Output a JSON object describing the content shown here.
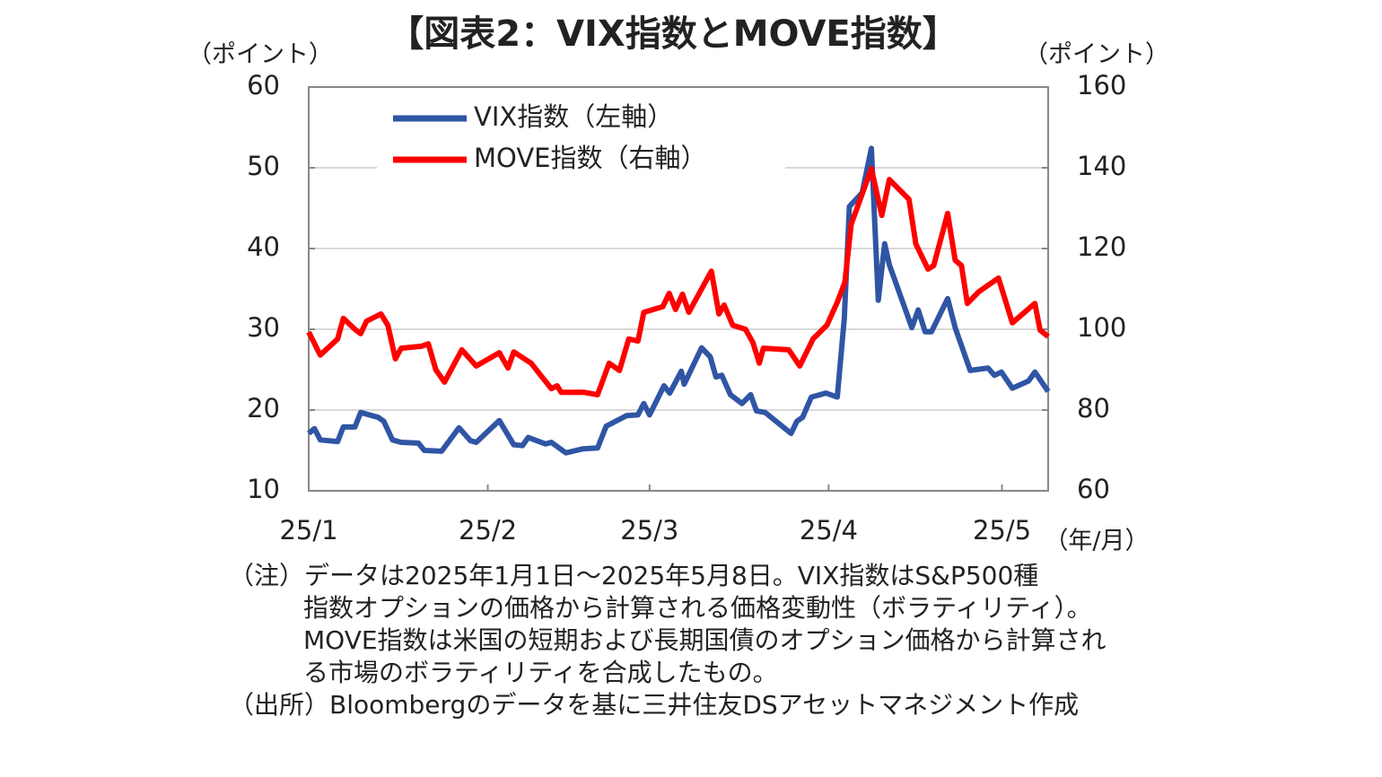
{
  "chart_data": {
    "type": "line",
    "title": "【図表2：VIX指数とMOVE指数】",
    "ylabel": "（ポイント）",
    "y2label": "（ポイント）",
    "xlabel": "（年/月）",
    "xlim": [
      0,
      128
    ],
    "xticks": [
      {
        "value": 0,
        "label": "25/1"
      },
      {
        "value": 31,
        "label": "25/2"
      },
      {
        "value": 59,
        "label": "25/3"
      },
      {
        "value": 90,
        "label": "25/4"
      },
      {
        "value": 120,
        "label": "25/5"
      }
    ],
    "ylim": [
      10,
      60
    ],
    "yticks": [
      10,
      20,
      30,
      40,
      50,
      60
    ],
    "y2lim": [
      60,
      160
    ],
    "y2ticks": [
      60,
      80,
      100,
      120,
      140,
      160
    ],
    "grid": true,
    "legend": "upper left",
    "series": [
      {
        "name": "VIX指数（左軸）",
        "color": "#2f55a4",
        "axis": "y",
        "x": [
          0,
          1,
          2,
          5,
          6,
          8,
          9,
          12,
          13,
          14.5,
          16,
          19,
          20,
          23,
          26,
          28,
          29,
          33,
          35.5,
          37,
          38,
          41,
          42,
          44.5,
          47.5,
          50,
          51.5,
          55,
          57,
          58,
          59,
          61.5,
          62.5,
          64.5,
          65,
          68,
          69.5,
          70.5,
          71.5,
          73,
          75,
          76.5,
          77.5,
          79,
          83.5,
          84.5,
          85.5,
          87,
          89.5,
          91.5,
          92.7,
          93.6,
          95.8,
          97.4,
          98.6,
          99.7,
          100.5,
          104.4,
          105.5,
          106.7,
          107.8,
          110.6,
          111.9,
          114.5,
          117.6,
          118.7,
          119.9,
          121.8,
          124.6,
          125.7,
          128
        ],
        "values": [
          17.1,
          17.7,
          16.3,
          16.1,
          17.9,
          17.9,
          19.7,
          19.1,
          18.6,
          16.3,
          16,
          15.9,
          15,
          14.9,
          17.8,
          16.2,
          16,
          18.7,
          15.7,
          15.6,
          16.6,
          15.8,
          16,
          14.7,
          15.2,
          15.3,
          18,
          19.3,
          19.4,
          20.8,
          19.4,
          23,
          22.1,
          24.8,
          23.2,
          27.7,
          26.6,
          24.1,
          24.3,
          21.9,
          20.8,
          21.9,
          19.9,
          19.7,
          17.1,
          18.6,
          19.1,
          21.6,
          22.1,
          21.6,
          31.3,
          45.2,
          46.9,
          52.4,
          33.6,
          40.6,
          38,
          30.2,
          32.4,
          29.7,
          29.7,
          33.8,
          30.2,
          24.9,
          25.2,
          24.3,
          24.7,
          22.7,
          23.6,
          24.7,
          22.3
        ]
      },
      {
        "name": "MOVE指数（右軸）",
        "color": "#ff0000",
        "axis": "y2",
        "x": [
          0,
          2,
          5,
          6,
          8,
          9,
          10,
          12.5,
          13.7,
          15,
          16,
          19.5,
          20.7,
          22,
          23.5,
          26.5,
          29,
          33,
          34.5,
          35.5,
          38.5,
          42,
          43,
          43.7,
          47.6,
          50,
          52,
          53.8,
          55.4,
          57,
          58,
          61.3,
          62.4,
          63.5,
          64.7,
          65.8,
          69.7,
          71,
          71.9,
          73.4,
          75.6,
          76.9,
          78,
          78.7,
          83.1,
          85,
          87.3,
          89.7,
          91.5,
          92.8,
          93.9,
          97.4,
          99.2,
          100.5,
          103.9,
          105.1,
          107.2,
          108.2,
          110.6,
          111.9,
          113,
          114,
          116,
          119.4,
          121.8,
          125.7,
          126.6,
          128
        ],
        "values": [
          99.3,
          93.6,
          97.6,
          102.7,
          100,
          98.9,
          102,
          103.8,
          101,
          92.7,
          95.3,
          95.8,
          96.4,
          90,
          86.9,
          94.9,
          90.9,
          94.2,
          90.4,
          94.4,
          91.6,
          85.3,
          86,
          84.4,
          84.4,
          83.8,
          91.6,
          89.8,
          97.6,
          97.1,
          104.2,
          105.6,
          108.9,
          104.9,
          108.7,
          104.2,
          114.4,
          103.8,
          106,
          101,
          100,
          96.7,
          91.6,
          95.3,
          94.9,
          90.9,
          97.6,
          101,
          106.7,
          111.6,
          126,
          139.8,
          128.2,
          137.1,
          132.2,
          121.1,
          114.9,
          115.8,
          128.7,
          117.1,
          115.8,
          106.4,
          109.3,
          112.7,
          101.6,
          106.4,
          99.8,
          98.2
        ]
      }
    ],
    "notes": [
      "（注）データは2025年1月1日～2025年5月8日。VIX指数はS&P500種",
      "指数オプションの価格から計算される価格変動性（ボラティリティ）。",
      "MOVE指数は米国の短期および長期国債のオプション価格から計算され",
      "る市場のボラティリティを合成したもの。"
    ],
    "source": "（出所）Bloombergのデータを基に三井住友DSアセットマネジメント作成"
  }
}
